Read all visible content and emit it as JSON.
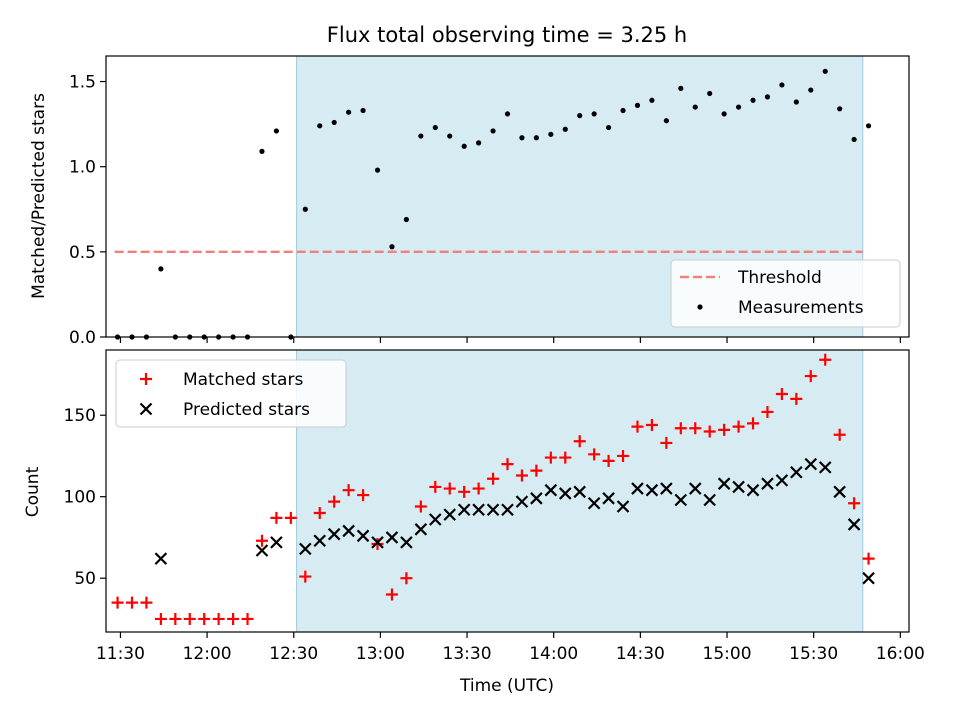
{
  "chart_data": [
    {
      "type": "scatter",
      "title": "Flux total observing time = 3.25 h",
      "ylabel": "Matched/Predicted stars",
      "xlabel": "",
      "ylim": [
        0,
        1.65
      ],
      "yticks": [
        "0.0",
        "0.5",
        "1.0",
        "1.5"
      ],
      "shaded_span": [
        "12:31",
        "15:47"
      ],
      "threshold": {
        "name": "Threshold",
        "value": 0.5,
        "from": "11:28",
        "to": "15:47"
      },
      "legend_position": "lower-right",
      "series": [
        {
          "name": "Measurements",
          "marker": "dot",
          "points": [
            [
              "11:29",
              0
            ],
            [
              "11:34",
              0
            ],
            [
              "11:39",
              0
            ],
            [
              "11:44",
              0.4
            ],
            [
              "11:49",
              0
            ],
            [
              "11:54",
              0
            ],
            [
              "11:59",
              0
            ],
            [
              "12:04",
              0
            ],
            [
              "12:09",
              0
            ],
            [
              "12:14",
              0
            ],
            [
              "12:19",
              1.09
            ],
            [
              "12:24",
              1.21
            ],
            [
              "12:29",
              0
            ],
            [
              "12:34",
              0.75
            ],
            [
              "12:39",
              1.24
            ],
            [
              "12:44",
              1.26
            ],
            [
              "12:49",
              1.32
            ],
            [
              "12:54",
              1.33
            ],
            [
              "12:59",
              0.98
            ],
            [
              "13:04",
              0.53
            ],
            [
              "13:09",
              0.69
            ],
            [
              "13:14",
              1.18
            ],
            [
              "13:19",
              1.23
            ],
            [
              "13:24",
              1.18
            ],
            [
              "13:29",
              1.12
            ],
            [
              "13:34",
              1.14
            ],
            [
              "13:39",
              1.21
            ],
            [
              "13:44",
              1.31
            ],
            [
              "13:49",
              1.17
            ],
            [
              "13:54",
              1.17
            ],
            [
              "13:59",
              1.19
            ],
            [
              "14:04",
              1.22
            ],
            [
              "14:09",
              1.3
            ],
            [
              "14:14",
              1.31
            ],
            [
              "14:19",
              1.23
            ],
            [
              "14:24",
              1.33
            ],
            [
              "14:29",
              1.36
            ],
            [
              "14:34",
              1.39
            ],
            [
              "14:39",
              1.27
            ],
            [
              "14:44",
              1.46
            ],
            [
              "14:49",
              1.35
            ],
            [
              "14:54",
              1.43
            ],
            [
              "14:59",
              1.31
            ],
            [
              "15:04",
              1.35
            ],
            [
              "15:09",
              1.39
            ],
            [
              "15:14",
              1.41
            ],
            [
              "15:19",
              1.48
            ],
            [
              "15:24",
              1.38
            ],
            [
              "15:29",
              1.45
            ],
            [
              "15:34",
              1.56
            ],
            [
              "15:39",
              1.34
            ],
            [
              "15:44",
              1.16
            ],
            [
              "15:49",
              1.24
            ]
          ]
        }
      ]
    },
    {
      "type": "scatter",
      "title": "",
      "ylabel": "Count",
      "xlabel": "Time (UTC)",
      "ylim": [
        17,
        190
      ],
      "yticks": [
        "50",
        "100",
        "150"
      ],
      "xticks": [
        "11:30",
        "12:00",
        "12:30",
        "13:00",
        "13:30",
        "14:00",
        "14:30",
        "15:00",
        "15:30",
        "16:00"
      ],
      "xlim": [
        "11:25",
        "16:03"
      ],
      "shaded_span": [
        "12:31",
        "15:47"
      ],
      "legend_position": "upper-left",
      "series": [
        {
          "name": "Matched stars",
          "marker": "plus",
          "color": "#ff0000",
          "points": [
            [
              "11:29",
              35
            ],
            [
              "11:34",
              35
            ],
            [
              "11:39",
              35
            ],
            [
              "11:44",
              25
            ],
            [
              "11:49",
              25
            ],
            [
              "11:54",
              25
            ],
            [
              "11:59",
              25
            ],
            [
              "12:04",
              25
            ],
            [
              "12:09",
              25
            ],
            [
              "12:14",
              25
            ],
            [
              "12:19",
              73
            ],
            [
              "12:24",
              87
            ],
            [
              "12:29",
              87
            ],
            [
              "12:34",
              51
            ],
            [
              "12:39",
              90
            ],
            [
              "12:44",
              97
            ],
            [
              "12:49",
              104
            ],
            [
              "12:54",
              101
            ],
            [
              "12:59",
              71
            ],
            [
              "13:04",
              40
            ],
            [
              "13:09",
              50
            ],
            [
              "13:14",
              94
            ],
            [
              "13:19",
              106
            ],
            [
              "13:24",
              105
            ],
            [
              "13:29",
              103
            ],
            [
              "13:34",
              105
            ],
            [
              "13:39",
              111
            ],
            [
              "13:44",
              120
            ],
            [
              "13:49",
              113
            ],
            [
              "13:54",
              116
            ],
            [
              "13:59",
              124
            ],
            [
              "14:04",
              124
            ],
            [
              "14:09",
              134
            ],
            [
              "14:14",
              126
            ],
            [
              "14:19",
              122
            ],
            [
              "14:24",
              125
            ],
            [
              "14:29",
              143
            ],
            [
              "14:34",
              144
            ],
            [
              "14:39",
              133
            ],
            [
              "14:44",
              142
            ],
            [
              "14:49",
              142
            ],
            [
              "14:54",
              140
            ],
            [
              "14:59",
              141
            ],
            [
              "15:04",
              143
            ],
            [
              "15:09",
              145
            ],
            [
              "15:14",
              152
            ],
            [
              "15:19",
              163
            ],
            [
              "15:24",
              160
            ],
            [
              "15:29",
              174
            ],
            [
              "15:34",
              184
            ],
            [
              "15:39",
              138
            ],
            [
              "15:44",
              96
            ],
            [
              "15:49",
              62
            ]
          ]
        },
        {
          "name": "Predicted stars",
          "marker": "x",
          "color": "#000000",
          "points": [
            [
              "11:44",
              62
            ],
            [
              "12:19",
              67
            ],
            [
              "12:24",
              72
            ],
            [
              "12:34",
              68
            ],
            [
              "12:39",
              73
            ],
            [
              "12:44",
              77
            ],
            [
              "12:49",
              79
            ],
            [
              "12:54",
              76
            ],
            [
              "12:59",
              72
            ],
            [
              "13:04",
              75
            ],
            [
              "13:09",
              72
            ],
            [
              "13:14",
              80
            ],
            [
              "13:19",
              86
            ],
            [
              "13:24",
              89
            ],
            [
              "13:29",
              92
            ],
            [
              "13:34",
              92
            ],
            [
              "13:39",
              92
            ],
            [
              "13:44",
              92
            ],
            [
              "13:49",
              97
            ],
            [
              "13:54",
              99
            ],
            [
              "13:59",
              104
            ],
            [
              "14:04",
              102
            ],
            [
              "14:09",
              103
            ],
            [
              "14:14",
              96
            ],
            [
              "14:19",
              99
            ],
            [
              "14:24",
              94
            ],
            [
              "14:29",
              105
            ],
            [
              "14:34",
              104
            ],
            [
              "14:39",
              105
            ],
            [
              "14:44",
              98
            ],
            [
              "14:49",
              105
            ],
            [
              "14:54",
              98
            ],
            [
              "14:59",
              108
            ],
            [
              "15:04",
              106
            ],
            [
              "15:09",
              104
            ],
            [
              "15:14",
              108
            ],
            [
              "15:19",
              110
            ],
            [
              "15:24",
              115
            ],
            [
              "15:29",
              120
            ],
            [
              "15:34",
              118
            ],
            [
              "15:39",
              103
            ],
            [
              "15:44",
              83
            ],
            [
              "15:49",
              50
            ]
          ]
        }
      ]
    }
  ]
}
